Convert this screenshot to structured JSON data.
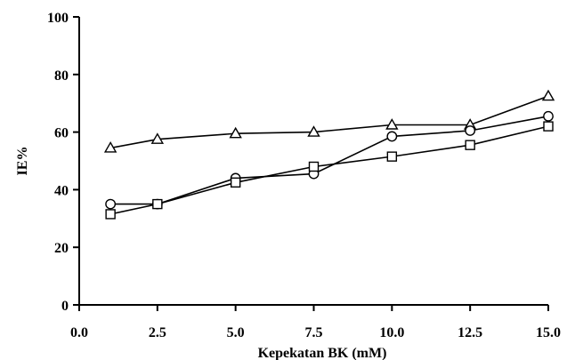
{
  "chart_data": {
    "type": "line",
    "xlabel": "Kepekatan BK (mM)",
    "ylabel": "IE%",
    "xlim": [
      0,
      15
    ],
    "ylim": [
      0,
      100
    ],
    "x_ticks": [
      0,
      2.5,
      5,
      7.5,
      10,
      12.5,
      15
    ],
    "x_tick_labels": [
      "0.0",
      "2.5",
      "5.0",
      "7.5",
      "10.0",
      "12.5",
      "15.0"
    ],
    "y_ticks": [
      0,
      20,
      40,
      60,
      80,
      100
    ],
    "y_tick_labels": [
      "0",
      "20",
      "40",
      "60",
      "80",
      "100"
    ],
    "grid": false,
    "legend": "none",
    "series": [
      {
        "marker": "triangle",
        "x": [
          1,
          2.5,
          5,
          7.5,
          10,
          12.5,
          15
        ],
        "y": [
          54.5,
          57.5,
          59.5,
          60,
          62.5,
          62.5,
          72.5
        ]
      },
      {
        "marker": "circle",
        "x": [
          1,
          2.5,
          5,
          7.5,
          10,
          12.5,
          15
        ],
        "y": [
          35,
          35,
          44,
          45.5,
          58.5,
          60.5,
          65.5
        ]
      },
      {
        "marker": "square",
        "x": [
          1,
          2.5,
          5,
          7.5,
          10,
          12.5,
          15
        ],
        "y": [
          31.5,
          35,
          42.5,
          48,
          51.5,
          55.5,
          62
        ]
      }
    ]
  }
}
